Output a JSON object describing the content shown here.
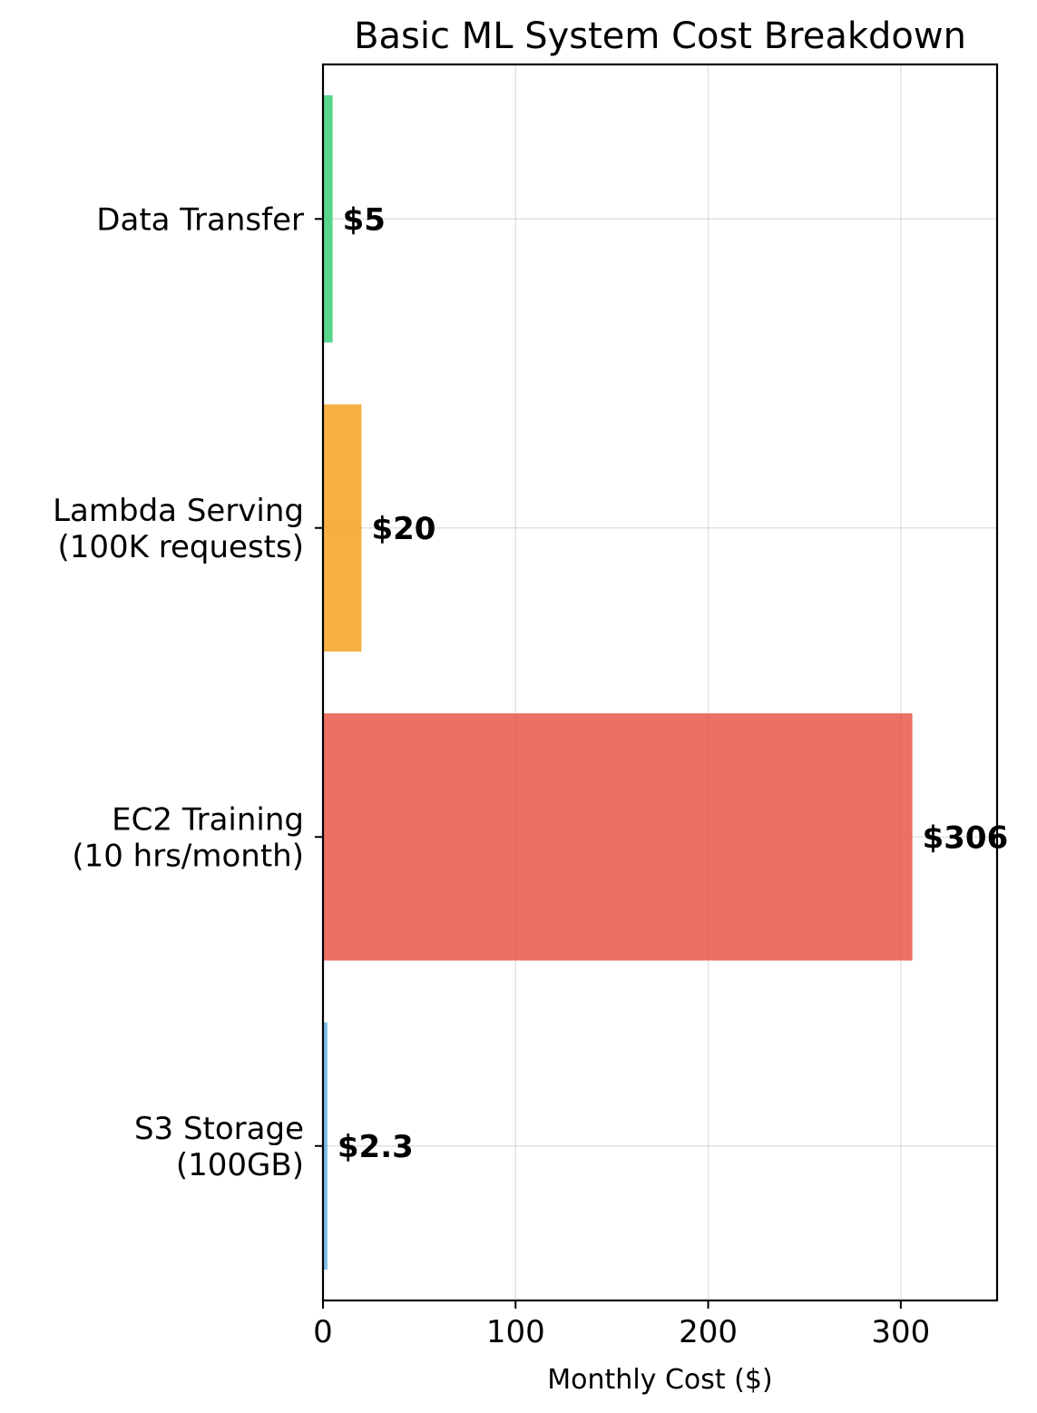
{
  "chart_data": {
    "type": "bar",
    "orientation": "horizontal",
    "title": "Basic ML System Cost Breakdown",
    "xlabel": "Monthly Cost ($)",
    "ylabel": "",
    "xlim": [
      0,
      350
    ],
    "xticks": [
      0,
      100,
      200,
      300
    ],
    "grid": true,
    "categories": [
      {
        "lines": [
          "S3 Storage",
          "(100GB)"
        ]
      },
      {
        "lines": [
          "EC2 Training",
          "(10 hrs/month)"
        ]
      },
      {
        "lines": [
          "Lambda Serving",
          "(100K requests)"
        ]
      },
      {
        "lines": [
          "Data Transfer"
        ]
      }
    ],
    "values": [
      2.3,
      306,
      20,
      5
    ],
    "data_labels": [
      "$2.3",
      "$306",
      "$20",
      "$5"
    ],
    "colors": [
      "#5dade2",
      "#e74c3c",
      "#f39c12",
      "#2ecc71"
    ],
    "bar_opacity": 0.8
  }
}
